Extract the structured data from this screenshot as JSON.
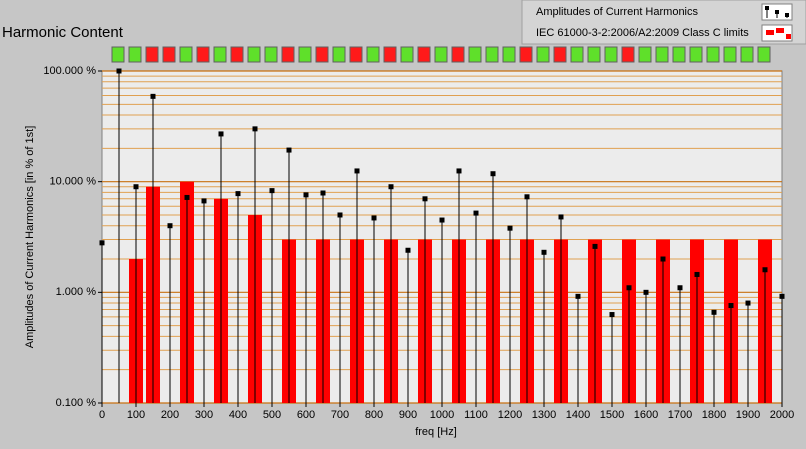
{
  "chart_data": {
    "type": "stem",
    "title": "Harmonic Content",
    "x_label": "freq [Hz]",
    "y_label": "Amplitudes of Current Harmonics [in % of 1st]",
    "log_y": true,
    "grid": true,
    "legend": "top-right",
    "xlim": [
      0,
      2000
    ],
    "xticks": [
      0,
      100,
      200,
      300,
      400,
      500,
      600,
      700,
      800,
      900,
      1000,
      1100,
      1200,
      1300,
      1400,
      1500,
      1600,
      1700,
      1800,
      1900,
      2000
    ],
    "ylim": [
      0.1,
      100
    ],
    "yticks": [
      {
        "value": 0.1,
        "label": "0.100 %"
      },
      {
        "value": 1,
        "label": "1.000 %"
      },
      {
        "value": 10,
        "label": "10.000 %"
      },
      {
        "value": 100,
        "label": "100.000 %"
      }
    ],
    "series": [
      {
        "name": "Amplitudes of Current Harmonics",
        "type": "stem",
        "color": "#000000",
        "x": [
          0,
          50,
          100,
          150,
          200,
          250,
          300,
          350,
          400,
          450,
          500,
          550,
          600,
          650,
          700,
          750,
          800,
          850,
          900,
          950,
          1000,
          1050,
          1100,
          1150,
          1200,
          1250,
          1300,
          1350,
          1400,
          1450,
          1500,
          1550,
          1600,
          1650,
          1700,
          1750,
          1800,
          1850,
          1900,
          1950,
          2000
        ],
        "values": [
          2.8,
          100,
          9,
          59,
          4.0,
          7.2,
          6.7,
          27,
          7.8,
          30,
          8.3,
          19.3,
          7.6,
          7.9,
          5.0,
          12.5,
          4.7,
          9.0,
          2.4,
          7.0,
          4.5,
          12.5,
          5.2,
          11.8,
          3.8,
          7.3,
          2.3,
          4.8,
          0.92,
          2.6,
          0.63,
          1.1,
          1.0,
          2.0,
          1.1,
          1.45,
          0.66,
          0.76,
          0.8,
          1.6,
          0.92
        ]
      },
      {
        "name": "IEC 61000-3-2:2006/A2:2009 Class C limits",
        "type": "bar",
        "color": "#ff0000",
        "x": [
          100,
          150,
          250,
          350,
          450,
          550,
          650,
          750,
          850,
          950,
          1050,
          1150,
          1250,
          1350,
          1450,
          1550,
          1650,
          1750,
          1850,
          1950
        ],
        "values": [
          2,
          9,
          10,
          7,
          5,
          3,
          3,
          3,
          3,
          3,
          3,
          3,
          3,
          3,
          3,
          3,
          3,
          3,
          3,
          3
        ]
      }
    ]
  }
}
